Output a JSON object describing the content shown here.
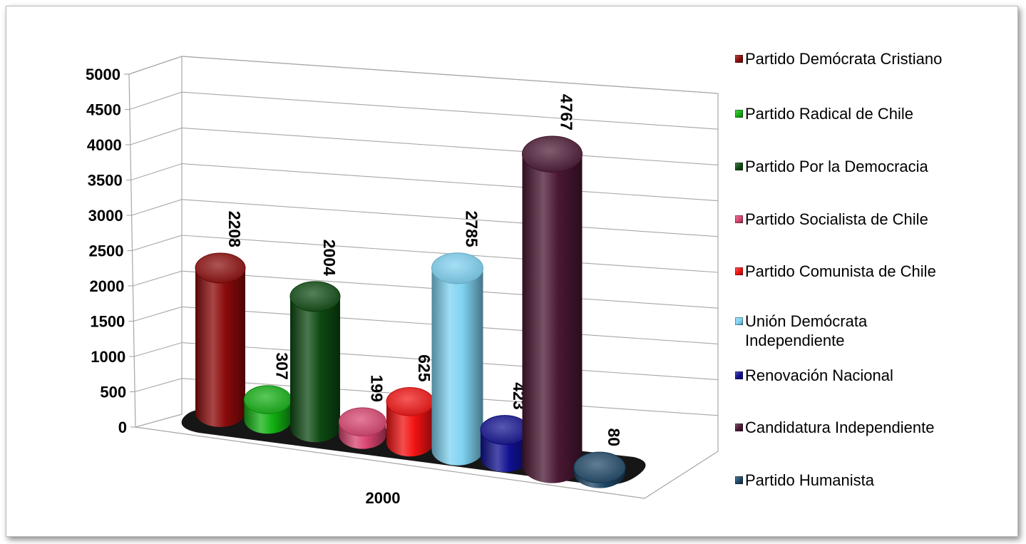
{
  "chart_data": {
    "type": "bar",
    "categories": [
      "2000"
    ],
    "series": [
      {
        "name": "Partido Demócrata Cristiano",
        "values": [
          2208
        ],
        "color": "#8b0a0a"
      },
      {
        "name": "Partido Radical de Chile",
        "values": [
          307
        ],
        "color": "#13b013"
      },
      {
        "name": "Partido Por la Democracia",
        "values": [
          2004
        ],
        "color": "#0d4a12"
      },
      {
        "name": "Partido Socialista de Chile",
        "values": [
          199
        ],
        "color": "#d8436f"
      },
      {
        "name": "Partido Comunista de Chile",
        "values": [
          625
        ],
        "color": "#f21212"
      },
      {
        "name": "Unión Demócrata Independiente",
        "values": [
          2785
        ],
        "color": "#7fd3f2"
      },
      {
        "name": "Renovación Nacional",
        "values": [
          423
        ],
        "color": "#10108f"
      },
      {
        "name": "Candidatura Independiente",
        "values": [
          4767
        ],
        "color": "#4a1733"
      },
      {
        "name": "Partido Humanista",
        "values": [
          80
        ],
        "color": "#1d4666"
      }
    ],
    "ylim": [
      0,
      5000
    ],
    "yticks": [
      "0",
      "500",
      "1000",
      "1500",
      "2000",
      "2500",
      "3000",
      "3500",
      "4000",
      "4500",
      "5000"
    ],
    "grid": true,
    "legend_position": "right",
    "style": "3d-cylinder"
  }
}
